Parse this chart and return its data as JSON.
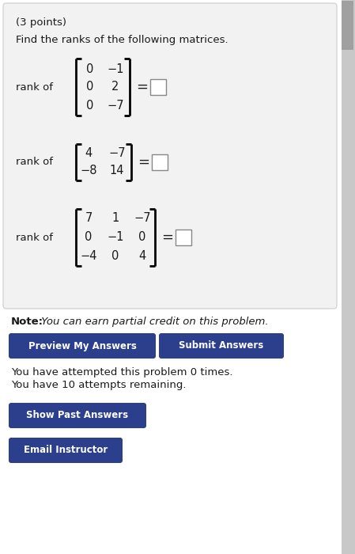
{
  "title": "(3 points)",
  "subtitle": "Find the ranks of the following matrices.",
  "bg_color": "#e8e8e8",
  "panel_color": "#f2f2f2",
  "panel_border": "#cccccc",
  "text_color": "#1a1a1a",
  "button_color": "#2b3f8c",
  "button_text_color": "#ffffff",
  "note_bold": "Note:",
  "note_italic": " You can earn partial credit on this problem.",
  "attempt_text1": "You have attempted this problem 0 times.",
  "attempt_text2": "You have 10 attempts remaining.",
  "btn1": "Preview My Answers",
  "btn2": "Submit Answers",
  "btn3": "Show Past Answers",
  "btn4": "Email Instructor",
  "matrix1": [
    [
      0,
      -1
    ],
    [
      0,
      2
    ],
    [
      0,
      -7
    ]
  ],
  "matrix2": [
    [
      4,
      -7
    ],
    [
      -8,
      14
    ]
  ],
  "matrix3": [
    [
      7,
      1,
      -7
    ],
    [
      0,
      -1,
      0
    ],
    [
      -4,
      0,
      4
    ]
  ],
  "scrollbar_color": "#c8c8c8",
  "white_bg": "#ffffff"
}
